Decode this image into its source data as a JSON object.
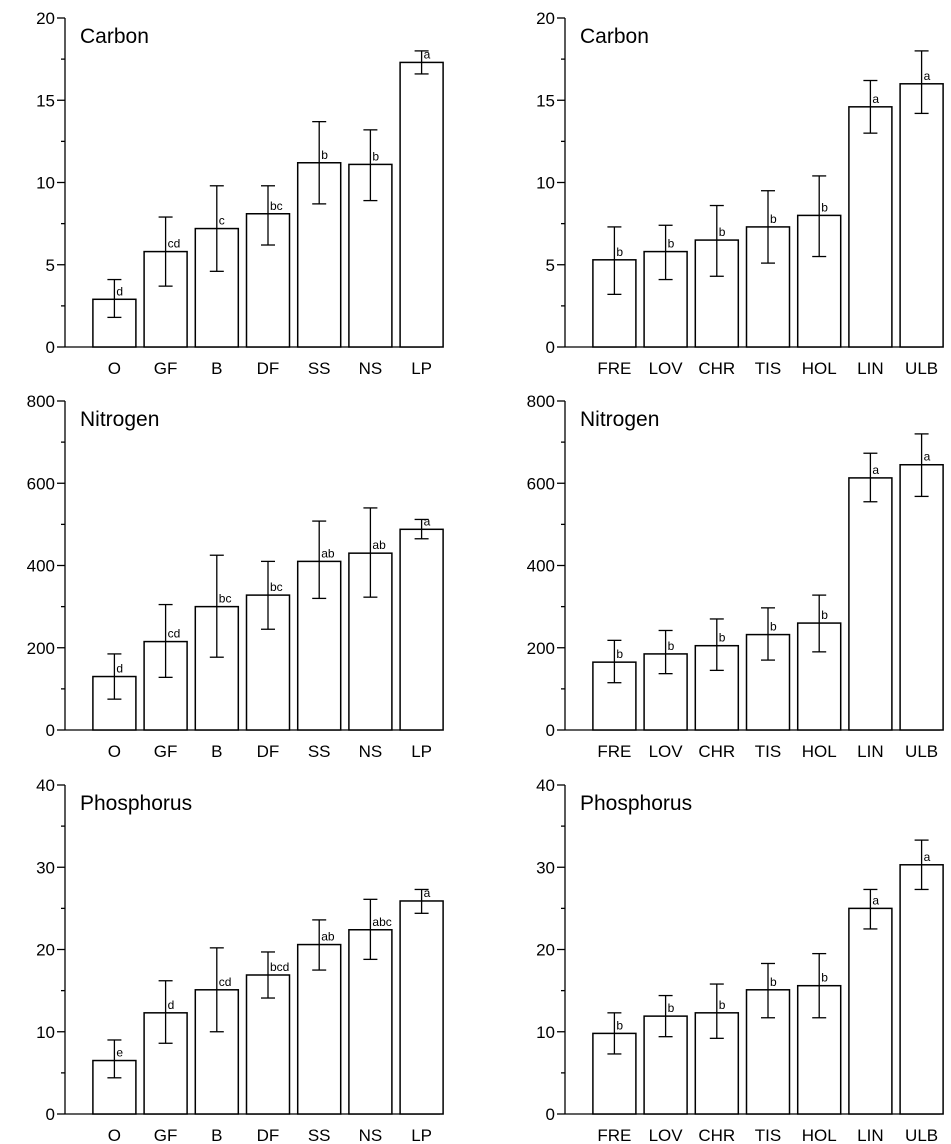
{
  "chart_data": [
    {
      "type": "bar",
      "title": "Carbon",
      "categories": [
        "O",
        "GF",
        "B",
        "DF",
        "SS",
        "NS",
        "LP"
      ],
      "values": [
        2.9,
        5.8,
        7.2,
        8.1,
        11.2,
        11.1,
        17.3
      ],
      "errors": [
        [
          1.8,
          4.1
        ],
        [
          3.7,
          7.9
        ],
        [
          4.6,
          9.8
        ],
        [
          6.2,
          9.8
        ],
        [
          8.7,
          13.7
        ],
        [
          8.9,
          13.2
        ],
        [
          16.6,
          18.0
        ]
      ],
      "letters": [
        "d",
        "cd",
        "c",
        "bc",
        "b",
        "b",
        "a"
      ],
      "ylim": [
        0,
        20
      ],
      "yticks": [
        0,
        5,
        10,
        15,
        20
      ],
      "grid": false,
      "error_bars": true
    },
    {
      "type": "bar",
      "title": "Carbon",
      "categories": [
        "FRE",
        "LOV",
        "CHR",
        "TIS",
        "HOL",
        "LIN",
        "ULB"
      ],
      "values": [
        5.3,
        5.8,
        6.5,
        7.3,
        8.0,
        14.6,
        16.0
      ],
      "errors": [
        [
          3.2,
          7.3
        ],
        [
          4.1,
          7.4
        ],
        [
          4.3,
          8.6
        ],
        [
          5.1,
          9.5
        ],
        [
          5.5,
          10.4
        ],
        [
          13.0,
          16.2
        ],
        [
          14.2,
          18.0
        ]
      ],
      "letters": [
        "b",
        "b",
        "b",
        "b",
        "b",
        "a",
        "a"
      ],
      "ylim": [
        0,
        20
      ],
      "yticks": [
        0,
        5,
        10,
        15,
        20
      ],
      "grid": false,
      "error_bars": true
    },
    {
      "type": "bar",
      "title": "Nitrogen",
      "categories": [
        "O",
        "GF",
        "B",
        "DF",
        "SS",
        "NS",
        "LP"
      ],
      "values": [
        130,
        215,
        300,
        328,
        410,
        430,
        488
      ],
      "errors": [
        [
          75,
          185
        ],
        [
          128,
          305
        ],
        [
          177,
          425
        ],
        [
          245,
          410
        ],
        [
          320,
          508
        ],
        [
          323,
          540
        ],
        [
          465,
          512
        ]
      ],
      "letters": [
        "d",
        "cd",
        "bc",
        "bc",
        "ab",
        "ab",
        "a"
      ],
      "ylim": [
        0,
        800
      ],
      "yticks": [
        0,
        200,
        400,
        600,
        800
      ],
      "grid": false,
      "error_bars": true
    },
    {
      "type": "bar",
      "title": "Nitrogen",
      "categories": [
        "FRE",
        "LOV",
        "CHR",
        "TIS",
        "HOL",
        "LIN",
        "ULB"
      ],
      "values": [
        165,
        185,
        205,
        232,
        260,
        613,
        645
      ],
      "errors": [
        [
          115,
          218
        ],
        [
          137,
          242
        ],
        [
          145,
          270
        ],
        [
          170,
          297
        ],
        [
          190,
          328
        ],
        [
          555,
          673
        ],
        [
          568,
          720
        ]
      ],
      "letters": [
        "b",
        "b",
        "b",
        "b",
        "b",
        "a",
        "a"
      ],
      "ylim": [
        0,
        800
      ],
      "yticks": [
        0,
        200,
        400,
        600,
        800
      ],
      "grid": false,
      "error_bars": true
    },
    {
      "type": "bar",
      "title": "Phosphorus",
      "categories": [
        "O",
        "GF",
        "B",
        "DF",
        "SS",
        "NS",
        "LP"
      ],
      "values": [
        6.5,
        12.3,
        15.1,
        16.9,
        20.6,
        22.4,
        25.9
      ],
      "errors": [
        [
          4.4,
          9.0
        ],
        [
          8.6,
          16.2
        ],
        [
          10.0,
          20.2
        ],
        [
          14.1,
          19.7
        ],
        [
          17.5,
          23.6
        ],
        [
          18.8,
          26.1
        ],
        [
          24.4,
          27.3
        ]
      ],
      "letters": [
        "e",
        "d",
        "cd",
        "bcd",
        "ab",
        "abc",
        "a"
      ],
      "ylim": [
        0,
        40
      ],
      "yticks": [
        0,
        10,
        20,
        30,
        40
      ],
      "grid": false,
      "error_bars": true
    },
    {
      "type": "bar",
      "title": "Phosphorus",
      "categories": [
        "FRE",
        "LOV",
        "CHR",
        "TIS",
        "HOL",
        "LIN",
        "ULB"
      ],
      "values": [
        9.8,
        11.9,
        12.3,
        15.1,
        15.6,
        25.0,
        30.3
      ],
      "errors": [
        [
          7.3,
          12.3
        ],
        [
          9.4,
          14.4
        ],
        [
          9.2,
          15.8
        ],
        [
          11.7,
          18.3
        ],
        [
          11.7,
          19.5
        ],
        [
          22.5,
          27.3
        ],
        [
          27.3,
          33.3
        ]
      ],
      "letters": [
        "b",
        "b",
        "b",
        "b",
        "b",
        "a",
        "a"
      ],
      "ylim": [
        0,
        40
      ],
      "yticks": [
        0,
        10,
        20,
        30,
        40
      ],
      "grid": false,
      "error_bars": true
    }
  ]
}
